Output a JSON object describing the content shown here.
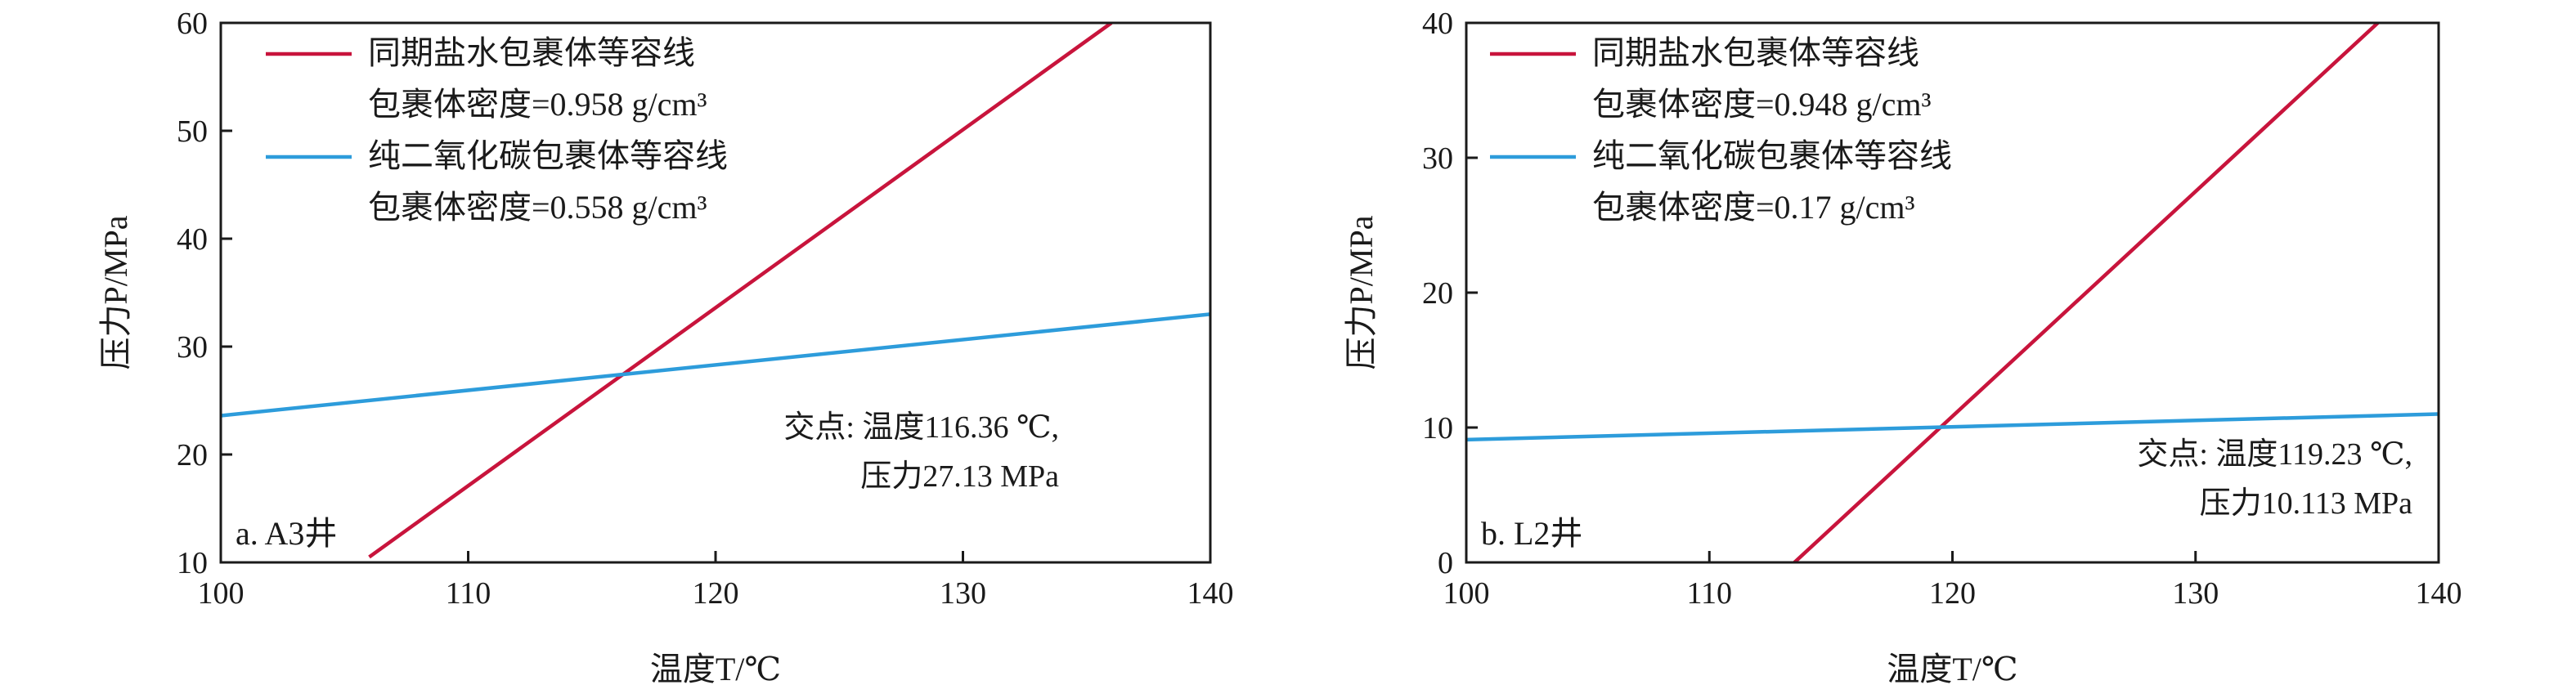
{
  "chart_data": [
    {
      "type": "line",
      "panel_label": "a. A3井",
      "xlabel": "温度T/℃",
      "ylabel": "压力P/MPa",
      "xlim": [
        100,
        140
      ],
      "ylim": [
        10,
        60
      ],
      "xticks": [
        "100",
        "110",
        "120",
        "130",
        "140"
      ],
      "yticks": [
        "10",
        "20",
        "30",
        "40",
        "50",
        "60"
      ],
      "series": [
        {
          "name": "同期盐水包裹体等容线",
          "density_label": "包裹体密度=0.958 g/cm³",
          "color": "#c8143c",
          "x": [
            106,
            136
          ],
          "y": [
            10.5,
            60
          ]
        },
        {
          "name": "纯二氧化碳包裹体等容线",
          "density_label": "包裹体密度=0.558 g/cm³",
          "color": "#2d9cdb",
          "x": [
            100,
            140
          ],
          "y": [
            23.6,
            33.0
          ]
        }
      ],
      "annotation": [
        "交点: 温度116.36 ℃,",
        "压力27.13 MPa"
      ],
      "intersection": {
        "x": 116.36,
        "y": 27.13
      }
    },
    {
      "type": "line",
      "panel_label": "b. L2井",
      "xlabel": "温度T/℃",
      "ylabel": "压力P/MPa",
      "xlim": [
        100,
        140
      ],
      "ylim": [
        0,
        40
      ],
      "xticks": [
        "100",
        "110",
        "120",
        "130",
        "140"
      ],
      "yticks": [
        "0",
        "10",
        "20",
        "30",
        "40"
      ],
      "series": [
        {
          "name": "同期盐水包裹体等容线",
          "density_label": "包裹体密度=0.948 g/cm³",
          "color": "#c8143c",
          "x": [
            113.5,
            137.5
          ],
          "y": [
            0,
            40
          ]
        },
        {
          "name": "纯二氧化碳包裹体等容线",
          "density_label": "包裹体密度=0.17 g/cm³",
          "color": "#2d9cdb",
          "x": [
            100,
            140
          ],
          "y": [
            9.1,
            11.0
          ]
        }
      ],
      "annotation": [
        "交点: 温度119.23 ℃,",
        "压力10.113 MPa"
      ],
      "intersection": {
        "x": 119.23,
        "y": 10.113
      }
    }
  ]
}
